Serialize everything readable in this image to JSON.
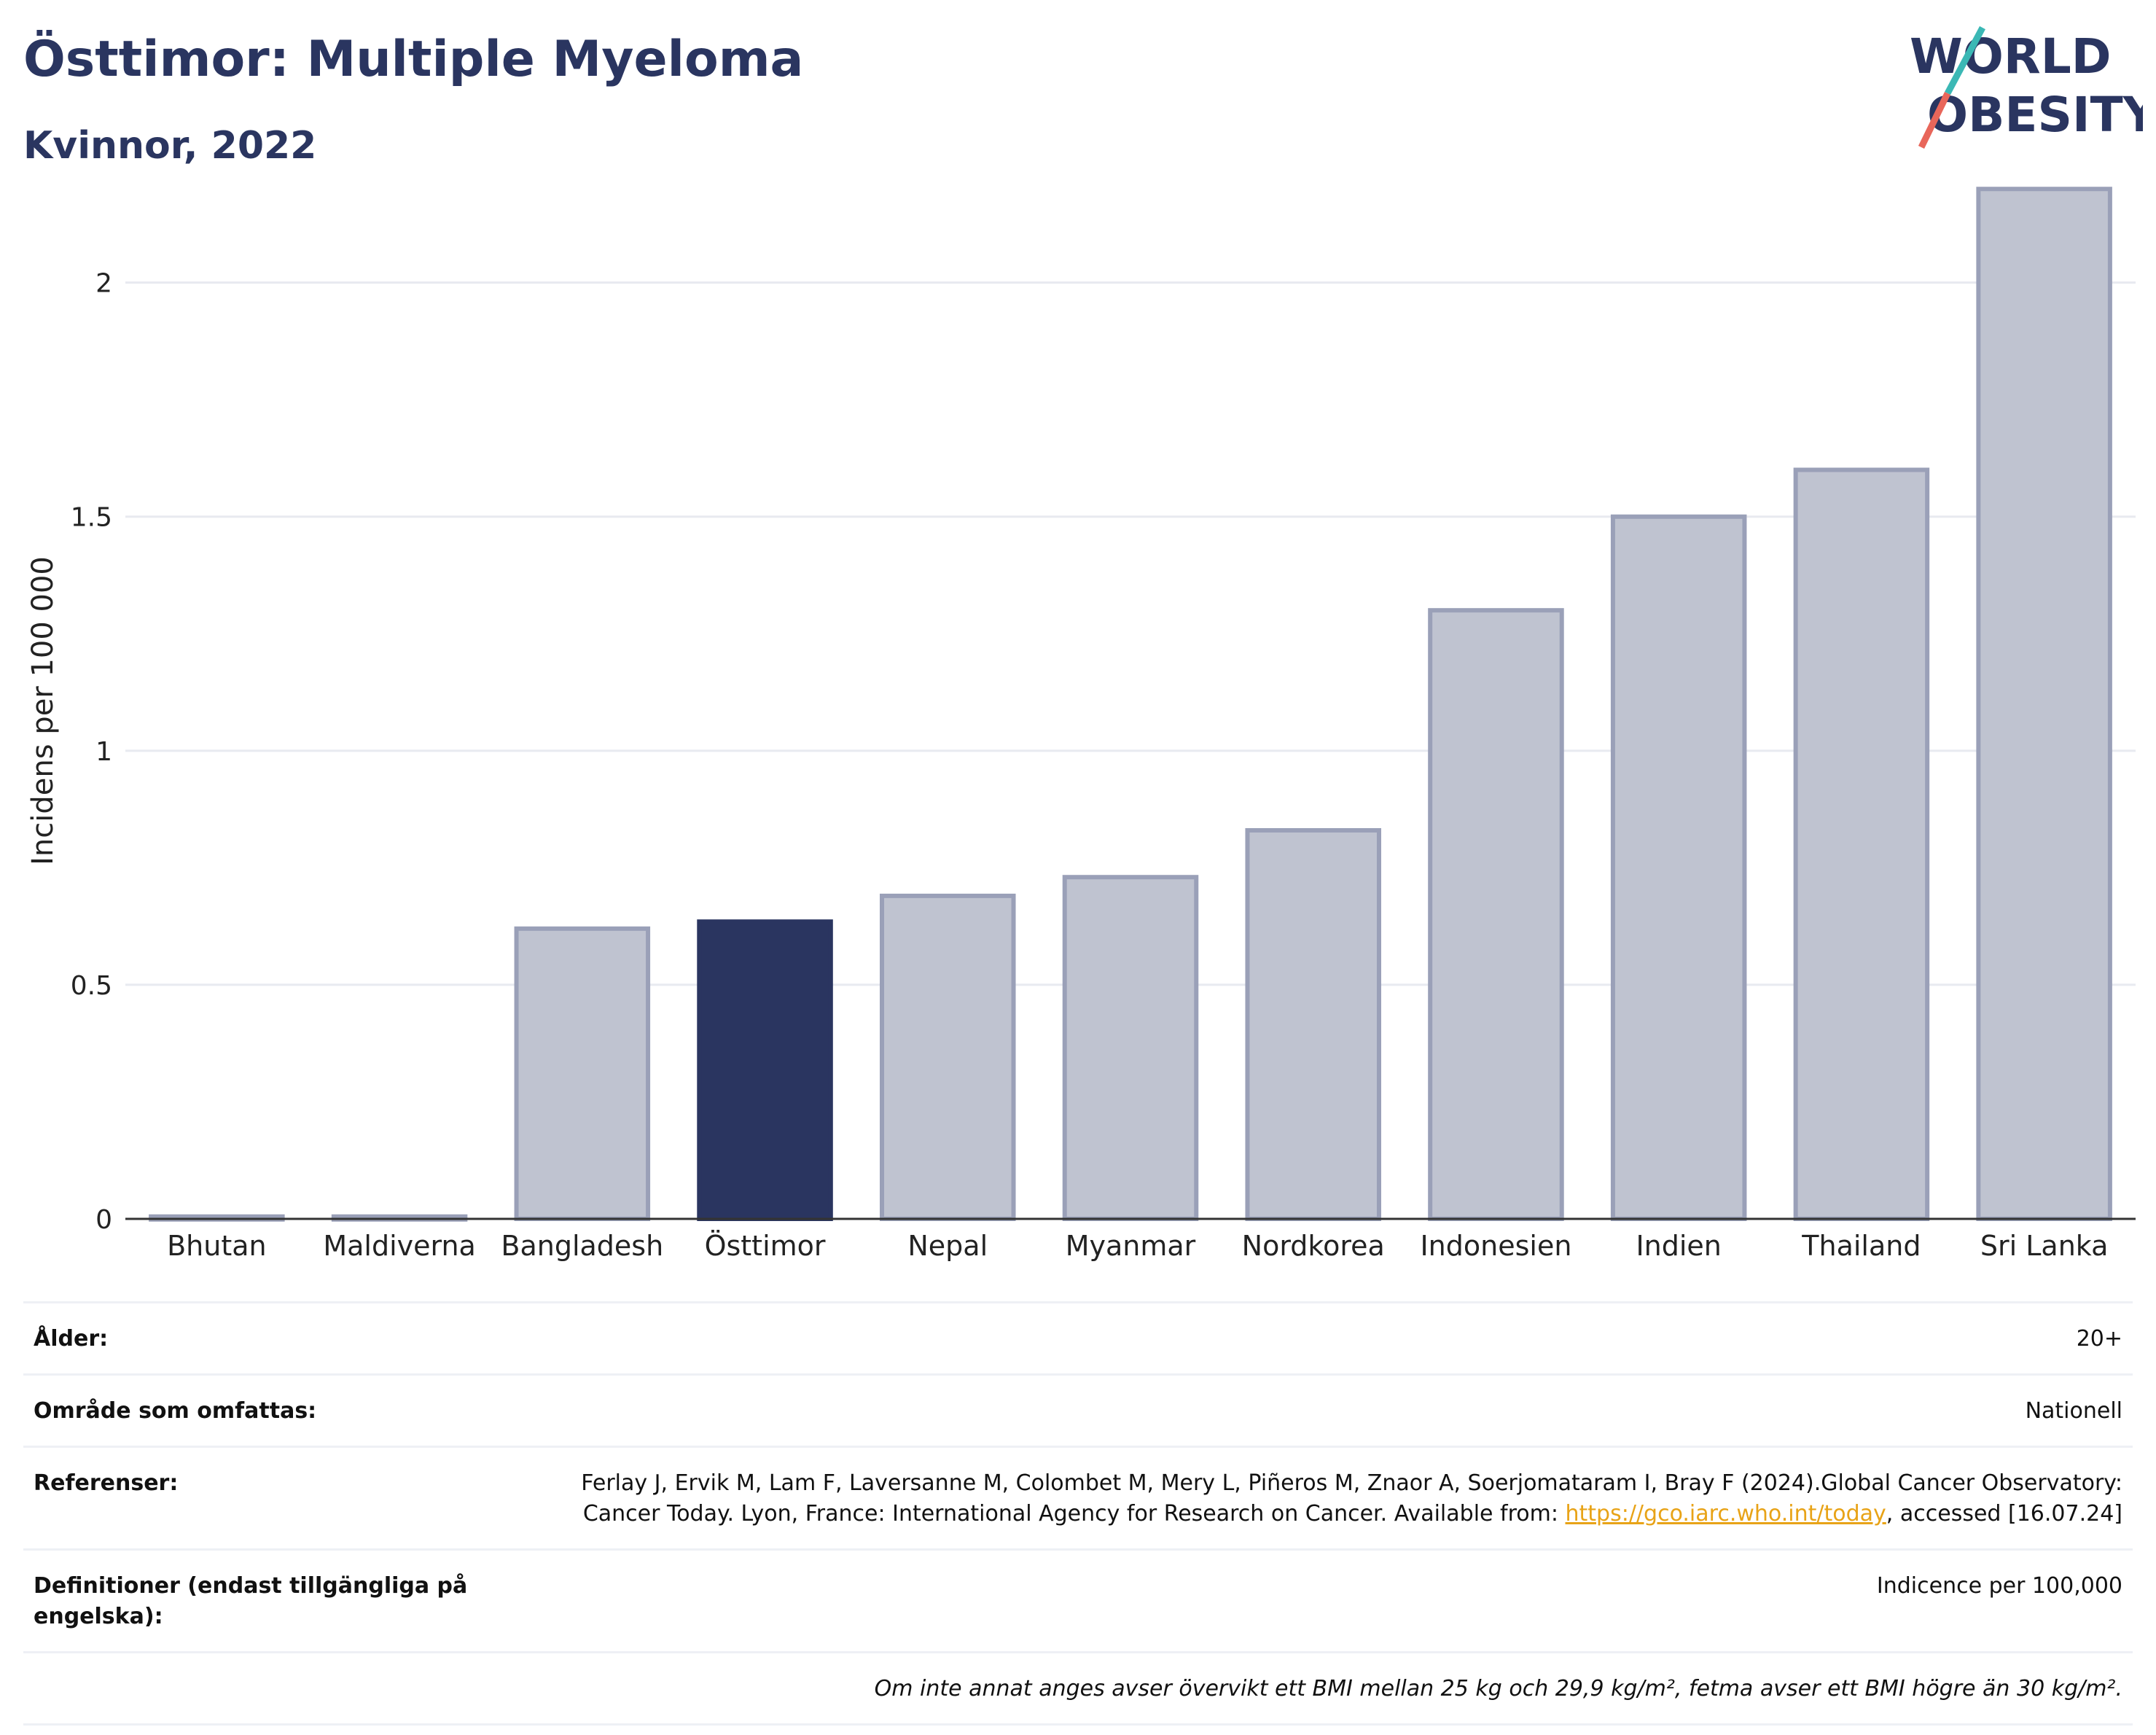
{
  "header": {
    "title": "Östtimor: Multiple Myeloma",
    "subtitle": "Kvinnor, 2022"
  },
  "logo": {
    "line1": "WORLD",
    "line2": "OBESITY",
    "colors": {
      "text": "#2a3560",
      "slash_top": "#3bb8b5",
      "slash_bottom": "#e8665a"
    }
  },
  "chart_data": {
    "type": "bar",
    "ylabel": "Incidens per 100 000",
    "xlabel": "",
    "ylim": [
      0,
      2.3
    ],
    "yticks": [
      0,
      0.5,
      1,
      1.5,
      2
    ],
    "ytick_labels": [
      "0",
      "0.5",
      "1",
      "1.5",
      "2"
    ],
    "grid": true,
    "categories": [
      "Bhutan",
      "Maldiverna",
      "Bangladesh",
      "Östtimor",
      "Nepal",
      "Myanmar",
      "Nordkorea",
      "Indonesien",
      "Indien",
      "Thailand",
      "Sri Lanka"
    ],
    "values": [
      0.005,
      0.005,
      0.62,
      0.635,
      0.69,
      0.73,
      0.83,
      1.3,
      1.5,
      1.6,
      2.2
    ],
    "highlight": "Östtimor",
    "colors": {
      "bar": "#bfc3d0",
      "bar_border": "#9aa0b8",
      "highlight": "#2a3560",
      "grid": "#e8eaf0",
      "axis": "#333333"
    }
  },
  "info": {
    "age_label": "Ålder:",
    "age_value": "20+",
    "area_label": "Område som omfattas:",
    "area_value": "Nationell",
    "refs_label": "Referenser:",
    "refs_text": "Ferlay J, Ervik M, Lam F, Laversanne M, Colombet M, Mery L, Piñeros M, Znaor A, Soerjomataram I, Bray F (2024).Global Cancer Observatory: Cancer Today. Lyon, France: International Agency for Research on Cancer. Available from:",
    "refs_link": "https://gco.iarc.who.int/today",
    "refs_after": ", accessed [16.07.24]",
    "defs_label": "Definitioner (endast tillgängliga på engelska):",
    "defs_value": "Indicence per 100,000",
    "note": "Om inte annat anges avser övervikt ett BMI mellan 25 kg och 29,9 kg/m², fetma avser ett BMI högre än 30 kg/m²."
  }
}
